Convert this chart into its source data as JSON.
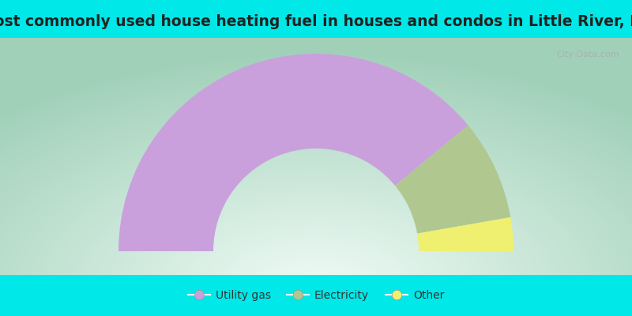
{
  "title": "Most commonly used house heating fuel in houses and condos in Little River, KS",
  "slices": [
    {
      "label": "Utility gas",
      "value": 78.0,
      "color": "#C9A0DC"
    },
    {
      "label": "Electricity",
      "value": 16.5,
      "color": "#B0C890"
    },
    {
      "label": "Other",
      "value": 5.5,
      "color": "#F0F070"
    }
  ],
  "bg_cyan": "#00E8E8",
  "bg_chart_outer": "#A8DCC8",
  "bg_chart_inner": "#F0FBF6",
  "title_color": "#222222",
  "title_fontsize": 13.5,
  "legend_fontsize": 10,
  "legend_color": "#333333",
  "watermark": "City-Data.com",
  "outer_r": 1.0,
  "inner_r": 0.52
}
